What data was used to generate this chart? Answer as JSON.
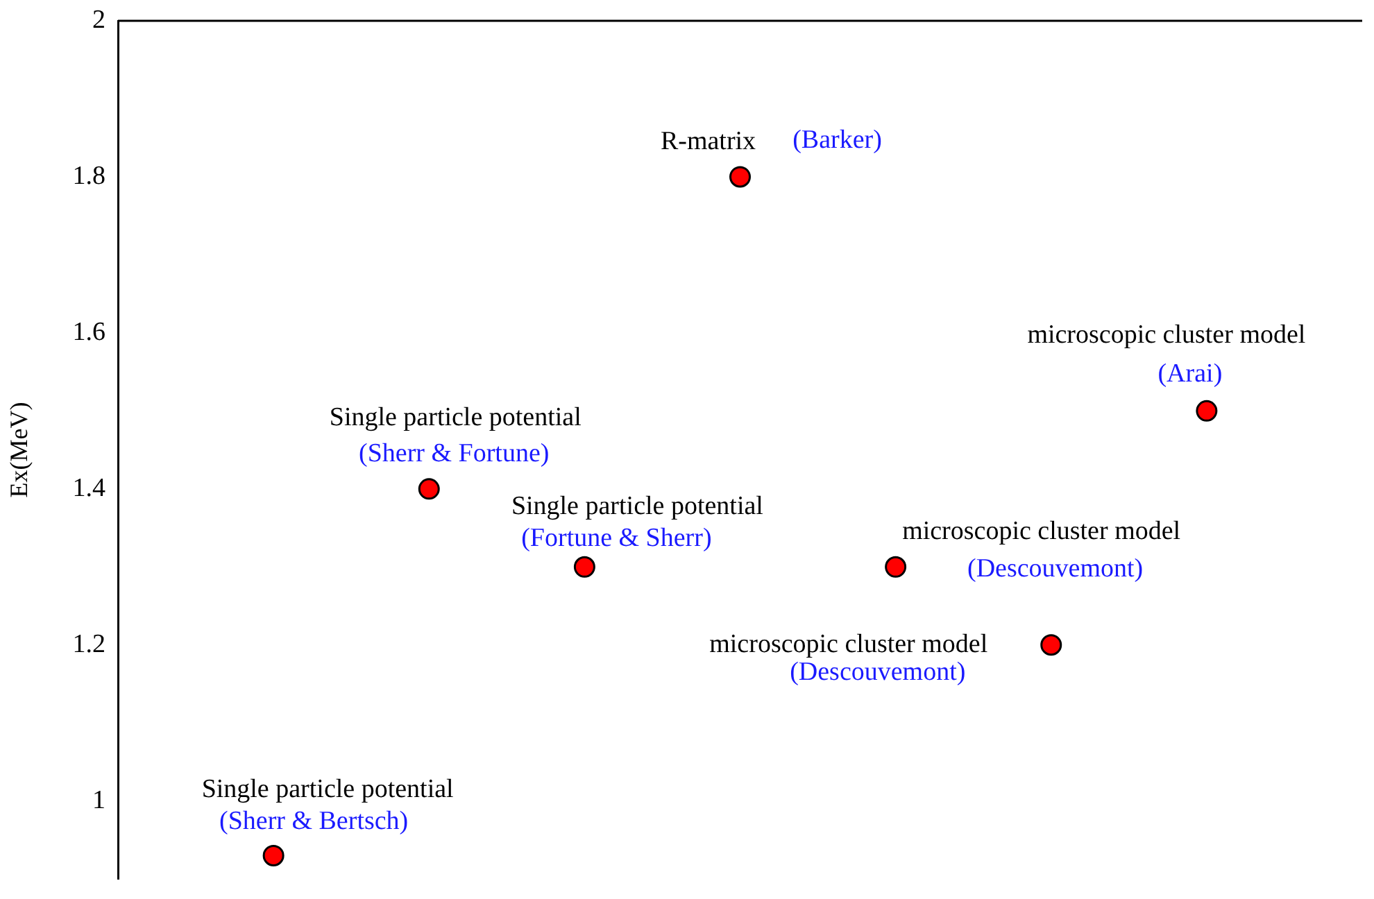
{
  "chart_data": {
    "type": "scatter",
    "ylabel": "Ex(MeV)",
    "categories": [
      null,
      null,
      null,
      null,
      null,
      null,
      null
    ],
    "ylim": [
      0.9,
      2
    ],
    "yticks": [
      1,
      1.2,
      1.4,
      1.6,
      1.8,
      2
    ],
    "series": [
      {
        "color": "#ff0000",
        "values": [
          0.93,
          1.4,
          1.3,
          1.8,
          1.3,
          1.2,
          1.5
        ]
      }
    ],
    "marker": "circle",
    "grid": false,
    "legend": false,
    "tick_labels": "y",
    "annotations": [
      "Single particle potential",
      "(Sherr & Bertsch)",
      "Single particle potential",
      "(Sherr & Fortune)",
      "Single particle potential",
      "(Fortune & Sherr)",
      "R-matrix",
      "(Barker)",
      "microscopic cluster model",
      "(Descouvemont)",
      "microscopic cluster model",
      "(Descouvemont)",
      "microscopic cluster model",
      "(Arai)"
    ]
  }
}
